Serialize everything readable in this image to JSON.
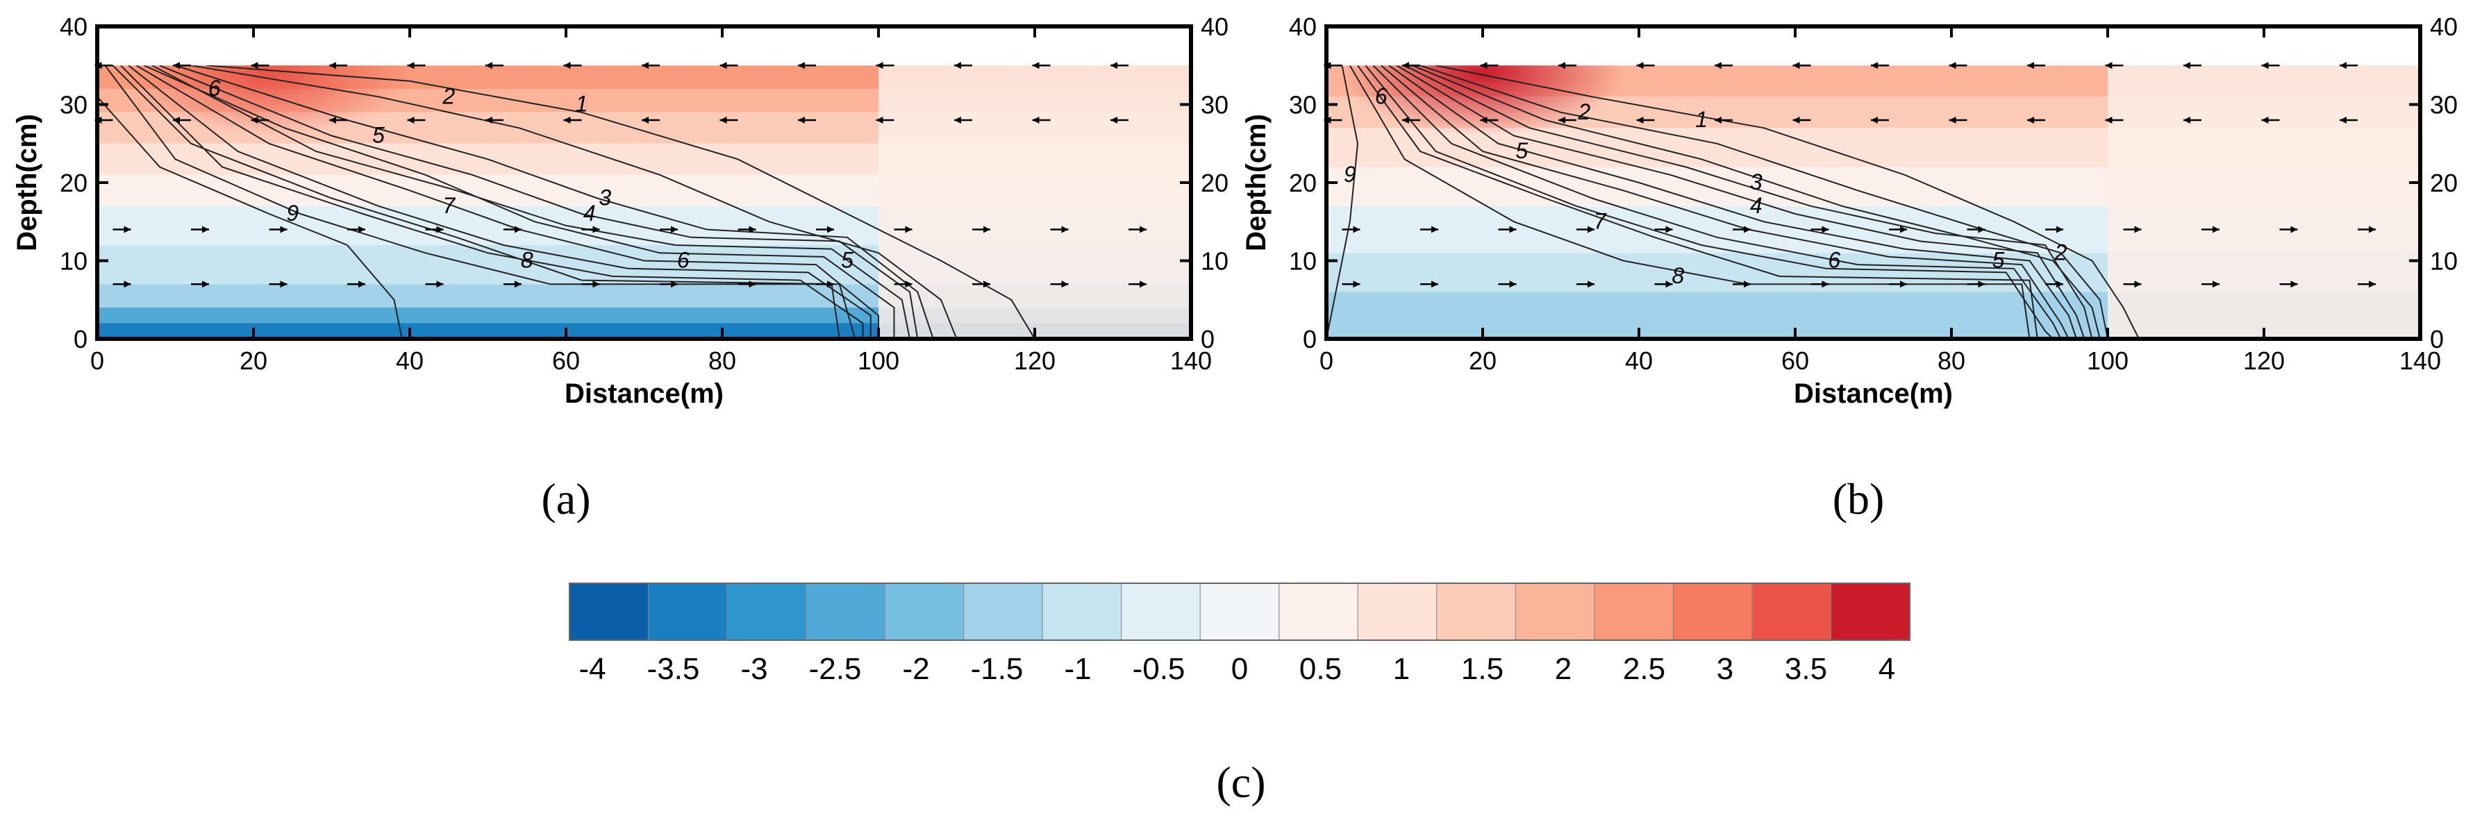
{
  "chart_data": [
    {
      "type": "contour",
      "panel_label": "(a)",
      "xlabel": "Distance(m)",
      "ylabel": "Depth(cm)",
      "xlim": [
        0,
        140
      ],
      "ylim": [
        0,
        40
      ],
      "xticks": [
        0,
        20,
        40,
        60,
        80,
        100,
        120,
        140
      ],
      "yticks": [
        0,
        10,
        20,
        30,
        40
      ],
      "water_surface_depth": 35,
      "fill_bands": [
        {
          "y0": 0,
          "y1": 2,
          "value": -3.5
        },
        {
          "y0": 2,
          "y1": 4,
          "value": -2.5
        },
        {
          "y0": 4,
          "y1": 7,
          "value": -1.5
        },
        {
          "y0": 7,
          "y1": 12,
          "value": -1
        },
        {
          "y0": 12,
          "y1": 17,
          "value": -0.5
        },
        {
          "y0": 17,
          "y1": 21,
          "value": 0.25
        },
        {
          "y0": 21,
          "y1": 25,
          "value": 0.75
        },
        {
          "y0": 25,
          "y1": 29,
          "value": 1.5
        },
        {
          "y0": 29,
          "y1": 32,
          "value": 2
        },
        {
          "y0": 32,
          "y1": 35,
          "value": 2.5
        }
      ],
      "hot_spot": {
        "x": 22,
        "y": 34,
        "value": 3.5
      },
      "contours": [
        {
          "level": 1,
          "points": [
            [
              14,
              35
            ],
            [
              40,
              33
            ],
            [
              62,
              29
            ],
            [
              82,
              23
            ],
            [
              96,
              16
            ],
            [
              108,
              10
            ],
            [
              117,
              5
            ],
            [
              120,
              0
            ]
          ],
          "label_at": [
            62,
            30
          ]
        },
        {
          "level": 2,
          "points": [
            [
              12,
              35
            ],
            [
              36,
              31
            ],
            [
              54,
              27
            ],
            [
              72,
              21
            ],
            [
              86,
              15
            ],
            [
              100,
              11
            ],
            [
              108,
              5
            ],
            [
              110,
              0
            ]
          ],
          "label_at": [
            45,
            31
          ]
        },
        {
          "level": 3,
          "points": [
            [
              10,
              35
            ],
            [
              32,
              28
            ],
            [
              50,
              23
            ],
            [
              64,
              18
            ],
            [
              78,
              14
            ],
            [
              96,
              13
            ],
            [
              105,
              6
            ],
            [
              107,
              0
            ]
          ]
        },
        {
          "level": 3,
          "points": [
            [
              8,
              35
            ],
            [
              30,
              26
            ],
            [
              48,
              21
            ],
            [
              62,
              16
            ],
            [
              76,
              13
            ],
            [
              95,
              12.5
            ],
            [
              104,
              6
            ],
            [
              105,
              0
            ]
          ],
          "label_at": [
            65,
            18
          ]
        },
        {
          "level": 4,
          "points": [
            [
              7,
              35
            ],
            [
              28,
              24
            ],
            [
              46,
              19
            ],
            [
              60,
              14.5
            ],
            [
              74,
              12
            ],
            [
              94,
              11.5
            ],
            [
              103,
              5
            ],
            [
              104,
              0
            ]
          ],
          "label_at": [
            63,
            16
          ]
        },
        {
          "level": 5,
          "points": [
            [
              6,
              35
            ],
            [
              24,
              27
            ],
            [
              42,
              21
            ],
            [
              56,
              15
            ],
            [
              72,
              11
            ],
            [
              93,
              10.5
            ],
            [
              102,
              4
            ],
            [
              102,
              0
            ]
          ],
          "label_at": [
            36,
            26
          ]
        },
        {
          "level": 5,
          "points": [
            [
              5,
              35
            ],
            [
              22,
              25
            ],
            [
              40,
              19
            ],
            [
              54,
              14
            ],
            [
              70,
              10
            ],
            [
              92,
              9.5
            ],
            [
              100,
              3
            ],
            [
              100,
              0
            ]
          ],
          "label_at": [
            96,
            10
          ]
        },
        {
          "level": 6,
          "points": [
            [
              4,
              35
            ],
            [
              18,
              24
            ],
            [
              36,
              17
            ],
            [
              52,
              12
            ],
            [
              68,
              9
            ],
            [
              91,
              8.5
            ],
            [
              99,
              3
            ],
            [
              99,
              0
            ]
          ],
          "label_at": [
            15,
            32
          ]
        },
        {
          "level": 6,
          "points": [
            [
              3,
              35
            ],
            [
              16,
              22
            ],
            [
              34,
              16
            ],
            [
              50,
              11
            ],
            [
              66,
              8
            ],
            [
              90,
              7.5
            ],
            [
              98,
              2
            ],
            [
              98,
              0
            ]
          ],
          "label_at": [
            75,
            10
          ]
        },
        {
          "level": 7,
          "points": [
            [
              2,
              35
            ],
            [
              12,
              25
            ],
            [
              30,
              18
            ],
            [
              46,
              13
            ],
            [
              62,
              7.5
            ],
            [
              95,
              7
            ],
            [
              97,
              0
            ]
          ],
          "label_at": [
            45,
            17
          ]
        },
        {
          "level": 8,
          "points": [
            [
              1,
              35
            ],
            [
              10,
              23
            ],
            [
              26,
              16
            ],
            [
              42,
              11
            ],
            [
              58,
              7
            ],
            [
              94,
              7
            ],
            [
              95,
              0
            ]
          ],
          "label_at": [
            55,
            10
          ]
        },
        {
          "level": 9,
          "points": [
            [
              0,
              31
            ],
            [
              8,
              22
            ],
            [
              22,
              16
            ],
            [
              32,
              12
            ],
            [
              38,
              5
            ],
            [
              39,
              0
            ]
          ],
          "label_at": [
            25,
            16
          ]
        }
      ]
    },
    {
      "type": "contour",
      "panel_label": "(b)",
      "xlabel": "Distance(m)",
      "ylabel": "Depth(cm)",
      "xlim": [
        0,
        140
      ],
      "ylim": [
        0,
        40
      ],
      "xticks": [
        0,
        20,
        40,
        60,
        80,
        100,
        120,
        140
      ],
      "yticks": [
        0,
        10,
        20,
        30,
        40
      ],
      "water_surface_depth": 35,
      "fill_bands": [
        {
          "y0": 0,
          "y1": 6,
          "value": -1.5
        },
        {
          "y0": 6,
          "y1": 11,
          "value": -1
        },
        {
          "y0": 11,
          "y1": 17,
          "value": -0.5
        },
        {
          "y0": 17,
          "y1": 22,
          "value": 0.25
        },
        {
          "y0": 22,
          "y1": 27,
          "value": 0.75
        },
        {
          "y0": 27,
          "y1": 31,
          "value": 1.25
        },
        {
          "y0": 31,
          "y1": 35,
          "value": 2
        }
      ],
      "hot_spot": {
        "x": 20,
        "y": 34,
        "value": 4
      },
      "contours": [
        {
          "level": 1,
          "points": [
            [
              14,
              35
            ],
            [
              34,
              31
            ],
            [
              56,
              27
            ],
            [
              74,
              21
            ],
            [
              88,
              15
            ],
            [
              98,
              10
            ],
            [
              102,
              4
            ],
            [
              104,
              0
            ]
          ],
          "label_at": [
            48,
            28
          ]
        },
        {
          "level": 2,
          "points": [
            [
              12,
              35
            ],
            [
              30,
              29
            ],
            [
              50,
              25
            ],
            [
              68,
              19
            ],
            [
              84,
              14
            ],
            [
              94,
              11
            ],
            [
              99,
              5
            ],
            [
              100,
              0
            ]
          ],
          "label_at": [
            33,
            29
          ]
        },
        {
          "level": 2,
          "points": [
            [
              11,
              35
            ],
            [
              28,
              28
            ],
            [
              48,
              23
            ],
            [
              66,
              17
            ],
            [
              82,
              13
            ],
            [
              93,
              10
            ],
            [
              98,
              4
            ],
            [
              99,
              0
            ]
          ],
          "label_at": [
            94,
            11
          ]
        },
        {
          "level": 3,
          "points": [
            [
              10,
              35
            ],
            [
              26,
              27
            ],
            [
              46,
              22
            ],
            [
              62,
              17
            ],
            [
              78,
              13.5
            ],
            [
              92,
              12
            ],
            [
              97,
              4
            ],
            [
              98,
              0
            ]
          ],
          "label_at": [
            55,
            20
          ]
        },
        {
          "level": 4,
          "points": [
            [
              9,
              35
            ],
            [
              24,
              26
            ],
            [
              44,
              21
            ],
            [
              60,
              16
            ],
            [
              76,
              12.5
            ],
            [
              91,
              11
            ],
            [
              96,
              3
            ],
            [
              97,
              0
            ]
          ],
          "label_at": [
            55,
            17
          ]
        },
        {
          "level": 5,
          "points": [
            [
              8,
              35
            ],
            [
              22,
              25
            ],
            [
              40,
              20
            ],
            [
              56,
              15
            ],
            [
              74,
              11.5
            ],
            [
              90,
              10
            ],
            [
              95,
              3
            ],
            [
              96,
              0
            ]
          ],
          "label_at": [
            25,
            24
          ]
        },
        {
          "level": 5,
          "points": [
            [
              7,
              35
            ],
            [
              20,
              24
            ],
            [
              38,
              19
            ],
            [
              54,
              14
            ],
            [
              72,
              10.5
            ],
            [
              89,
              9.5
            ],
            [
              94,
              2
            ],
            [
              95,
              0
            ]
          ],
          "label_at": [
            86,
            10
          ]
        },
        {
          "level": 6,
          "points": [
            [
              6,
              35
            ],
            [
              16,
              25
            ],
            [
              34,
              18
            ],
            [
              50,
              13
            ],
            [
              68,
              9.5
            ],
            [
              88,
              9
            ],
            [
              93,
              2
            ],
            [
              94,
              0
            ]
          ],
          "label_at": [
            7,
            31
          ]
        },
        {
          "level": 6,
          "points": [
            [
              5,
              35
            ],
            [
              14,
              24
            ],
            [
              32,
              17
            ],
            [
              48,
              12
            ],
            [
              64,
              9
            ],
            [
              87,
              8.5
            ],
            [
              92,
              1
            ],
            [
              93,
              0
            ]
          ],
          "label_at": [
            65,
            10
          ]
        },
        {
          "level": 7,
          "points": [
            [
              4,
              35
            ],
            [
              12,
              24
            ],
            [
              28,
              18
            ],
            [
              42,
              13
            ],
            [
              58,
              8
            ],
            [
              90,
              7.5
            ],
            [
              91,
              0
            ]
          ],
          "label_at": [
            35,
            15
          ]
        },
        {
          "level": 8,
          "points": [
            [
              3,
              35
            ],
            [
              10,
              23
            ],
            [
              24,
              15
            ],
            [
              38,
              10
            ],
            [
              54,
              7
            ],
            [
              89,
              7
            ],
            [
              90,
              0
            ]
          ],
          "label_at": [
            45,
            8
          ]
        },
        {
          "level": 9,
          "points": [
            [
              2,
              35
            ],
            [
              4,
              25
            ],
            [
              3,
              15
            ],
            [
              1,
              5
            ],
            [
              0,
              0
            ]
          ],
          "label_at": [
            3,
            21
          ]
        }
      ]
    }
  ],
  "colorbar": {
    "label": "(c)",
    "ticks": [
      "-4",
      "-3.5",
      "-3",
      "-2.5",
      "-2",
      "-1.5",
      "-1",
      "-0.5",
      "0",
      "0.5",
      "1",
      "1.5",
      "2",
      "2.5",
      "3",
      "3.5",
      "4"
    ],
    "colors": [
      "#0a5fa8",
      "#1a7fc1",
      "#2f95cd",
      "#50a9d6",
      "#76bfe0",
      "#a2d2ea",
      "#c7e4f1",
      "#e1eff6",
      "#f3f6f8",
      "#fbf0ec",
      "#fde2d8",
      "#fccbb7",
      "#fbb49a",
      "#f99a7b",
      "#f57c5f",
      "#e95446",
      "#cb1a2a"
    ]
  }
}
